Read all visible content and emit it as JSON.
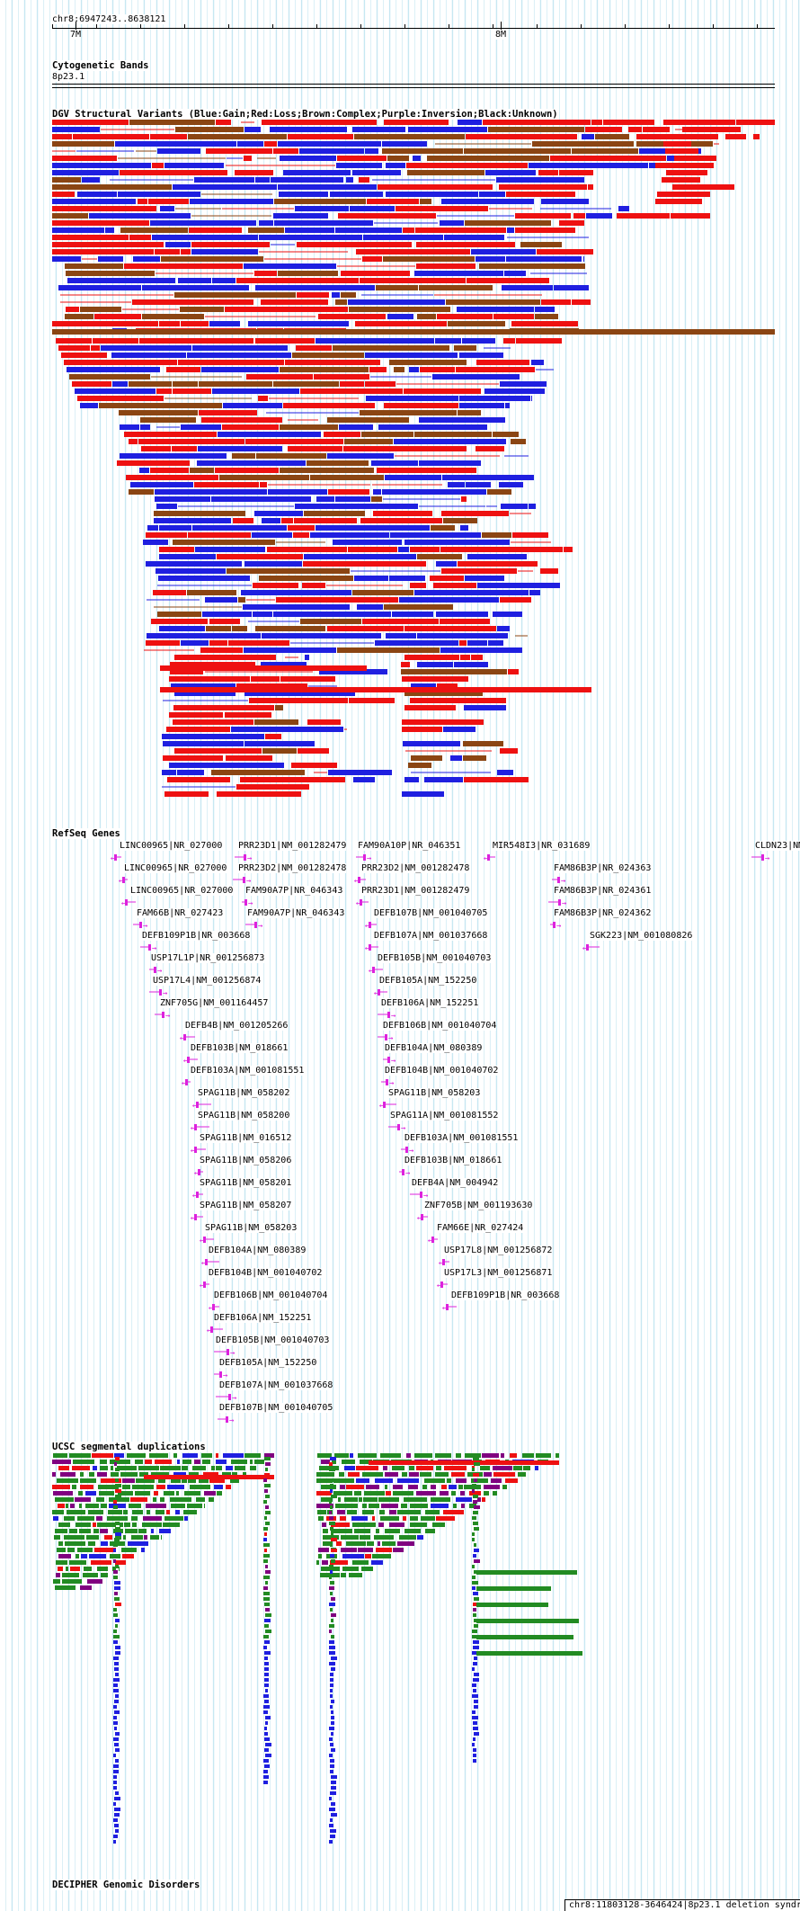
{
  "ruler": {
    "position": "chr8:6947243..8638121",
    "ticks": [
      "7M",
      "8M"
    ]
  },
  "cytoband": {
    "title": "Cytogenetic Bands",
    "band": "8p23.1"
  },
  "dgv": {
    "title": "DGV Structural Variants (Blue:Gain;Red:Loss;Brown:Complex;Purple:Inversion;Black:Unknown)",
    "colors": {
      "gain": "#1f1fe0",
      "loss": "#ee1111",
      "complex": "#8b4513",
      "inversion": "#800080",
      "unknown": "#000000"
    }
  },
  "refseq": {
    "title": "RefSeq Genes",
    "genes": [
      {
        "label": "LINC00965|NR_027000",
        "dir": "left"
      },
      {
        "label": "PRR23D1|NM_001282479",
        "dir": "right"
      },
      {
        "label": "FAM90A10P|NR_046351",
        "dir": "right"
      },
      {
        "label": "MIR548I3|NR_031689",
        "dir": "left"
      },
      {
        "label": "CLDN23|NM",
        "dir": "right"
      },
      {
        "label": "LINC00965|NR_027000",
        "dir": "left"
      },
      {
        "label": "PRR23D2|NM_001282478",
        "dir": "right"
      },
      {
        "label": "PRR23D2|NM_001282478",
        "dir": "left"
      },
      {
        "label": "FAM86B3P|NR_024363",
        "dir": "right"
      },
      {
        "label": "LINC00965|NR_027000",
        "dir": "left"
      },
      {
        "label": "FAM90A7P|NR_046343",
        "dir": "right"
      },
      {
        "label": "PRR23D1|NM_001282479",
        "dir": "left"
      },
      {
        "label": "FAM86B3P|NR_024361",
        "dir": "right"
      },
      {
        "label": "FAM66B|NR_027423",
        "dir": "right"
      },
      {
        "label": "FAM90A7P|NR_046343",
        "dir": "right"
      },
      {
        "label": "DEFB107B|NM_001040705",
        "dir": "left"
      },
      {
        "label": "FAM86B3P|NR_024362",
        "dir": "right"
      },
      {
        "label": "DEFB109P1B|NR_003668",
        "dir": "right"
      },
      {
        "label": "DEFB107A|NM_001037668",
        "dir": "left"
      },
      {
        "label": "SGK223|NM_001080826",
        "dir": "left"
      },
      {
        "label": "USP17L1P|NR_001256873",
        "dir": "right"
      },
      {
        "label": "DEFB105B|NM_001040703",
        "dir": "left"
      },
      {
        "label": "USP17L4|NM_001256874",
        "dir": "right"
      },
      {
        "label": "DEFB105A|NM_152250",
        "dir": "left"
      },
      {
        "label": "ZNF705G|NM_001164457",
        "dir": "right"
      },
      {
        "label": "DEFB106A|NM_152251",
        "dir": "right"
      },
      {
        "label": "DEFB4B|NM_001205266",
        "dir": "left"
      },
      {
        "label": "DEFB106B|NM_001040704",
        "dir": "right"
      },
      {
        "label": "DEFB103B|NM_018661",
        "dir": "left"
      },
      {
        "label": "DEFB104A|NM_080389",
        "dir": "right"
      },
      {
        "label": "DEFB103A|NM_001081551",
        "dir": "left"
      },
      {
        "label": "DEFB104B|NM_001040702",
        "dir": "right"
      },
      {
        "label": "SPAG11B|NM_058202",
        "dir": "left"
      },
      {
        "label": "SPAG11B|NM_058203",
        "dir": "left"
      },
      {
        "label": "SPAG11B|NM_058200",
        "dir": "left"
      },
      {
        "label": "SPAG11A|NM_001081552",
        "dir": "right"
      },
      {
        "label": "SPAG11B|NM_016512",
        "dir": "left"
      },
      {
        "label": "DEFB103A|NM_001081551",
        "dir": "right"
      },
      {
        "label": "SPAG11B|NM_058206",
        "dir": "left"
      },
      {
        "label": "DEFB103B|NM_018661",
        "dir": "right"
      },
      {
        "label": "SPAG11B|NM_058201",
        "dir": "left"
      },
      {
        "label": "DEFB4A|NM_004942",
        "dir": "right"
      },
      {
        "label": "SPAG11B|NM_058207",
        "dir": "left"
      },
      {
        "label": "ZNF705B|NM_001193630",
        "dir": "left"
      },
      {
        "label": "SPAG11B|NM_058203",
        "dir": "left"
      },
      {
        "label": "FAM66E|NR_027424",
        "dir": "left"
      },
      {
        "label": "DEFB104A|NM_080389",
        "dir": "left"
      },
      {
        "label": "USP17L8|NM_001256872",
        "dir": "left"
      },
      {
        "label": "DEFB104B|NM_001040702",
        "dir": "left"
      },
      {
        "label": "USP17L3|NM_001256871",
        "dir": "left"
      },
      {
        "label": "DEFB106B|NM_001040704",
        "dir": "left"
      },
      {
        "label": "DEFB109P1B|NR_003668",
        "dir": "left"
      },
      {
        "label": "DEFB106A|NM_152251",
        "dir": "left"
      },
      {
        "label": "DEFB105B|NM_001040703",
        "dir": "right"
      },
      {
        "label": "DEFB105A|NM_152250",
        "dir": "right"
      },
      {
        "label": "DEFB107A|NM_001037668",
        "dir": "right"
      },
      {
        "label": "DEFB107B|NM_001040705",
        "dir": "right"
      }
    ],
    "color": "#dd22dd"
  },
  "segdup": {
    "title": "UCSC segmental duplications",
    "colors": [
      "#228b22",
      "#800080",
      "#ee1111",
      "#1f1fe0"
    ]
  },
  "decipher": {
    "title": "DECIPHER Genomic Disorders",
    "item": "chr8:11803128-3646424|8p23.1 deletion syndr"
  }
}
